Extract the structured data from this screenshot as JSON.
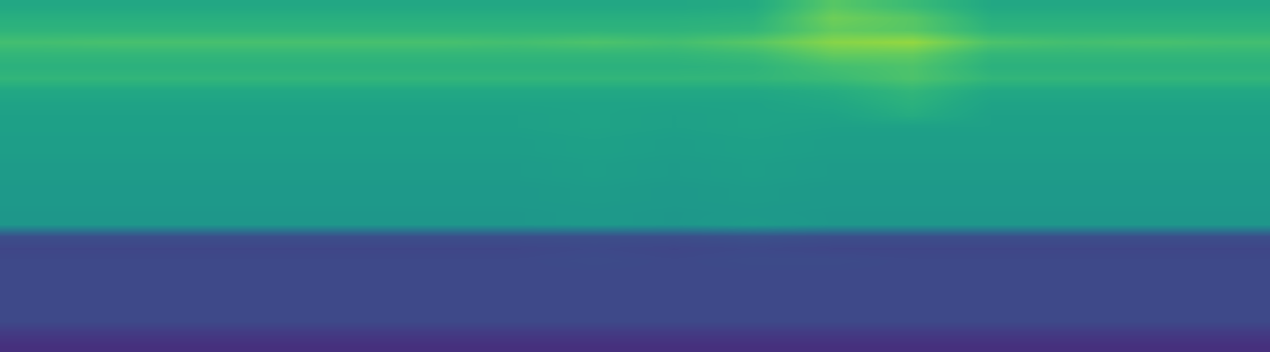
{
  "chart_data": {
    "type": "heatmap",
    "tick_labels": false,
    "color_range": [
      0,
      1
    ],
    "cells": [
      [
        0.6,
        0.6,
        0.6,
        0.6,
        0.6,
        0.6,
        0.6,
        0.6,
        0.6,
        0.61,
        0.74,
        0.68,
        0.6,
        0.6,
        0.6,
        0.6
      ],
      [
        0.63,
        0.63,
        0.63,
        0.63,
        0.63,
        0.63,
        0.63,
        0.63,
        0.63,
        0.64,
        0.78,
        0.74,
        0.63,
        0.63,
        0.63,
        0.63
      ],
      [
        0.65,
        0.65,
        0.65,
        0.65,
        0.65,
        0.65,
        0.65,
        0.65,
        0.65,
        0.66,
        0.76,
        0.74,
        0.65,
        0.65,
        0.65,
        0.65
      ],
      [
        0.7,
        0.71,
        0.71,
        0.71,
        0.71,
        0.71,
        0.7,
        0.72,
        0.7,
        0.74,
        0.82,
        0.84,
        0.72,
        0.7,
        0.71,
        0.7
      ],
      [
        0.66,
        0.66,
        0.66,
        0.66,
        0.66,
        0.66,
        0.66,
        0.66,
        0.66,
        0.68,
        0.76,
        0.76,
        0.66,
        0.66,
        0.66,
        0.66
      ],
      [
        0.64,
        0.64,
        0.64,
        0.64,
        0.64,
        0.64,
        0.64,
        0.64,
        0.64,
        0.65,
        0.7,
        0.72,
        0.64,
        0.64,
        0.64,
        0.64
      ],
      [
        0.66,
        0.66,
        0.66,
        0.66,
        0.66,
        0.66,
        0.66,
        0.66,
        0.66,
        0.66,
        0.68,
        0.72,
        0.66,
        0.66,
        0.66,
        0.66
      ],
      [
        0.6,
        0.6,
        0.6,
        0.6,
        0.6,
        0.6,
        0.6,
        0.6,
        0.6,
        0.6,
        0.62,
        0.66,
        0.6,
        0.6,
        0.6,
        0.6
      ],
      [
        0.58,
        0.58,
        0.58,
        0.58,
        0.58,
        0.58,
        0.58,
        0.58,
        0.58,
        0.58,
        0.6,
        0.64,
        0.58,
        0.58,
        0.58,
        0.58
      ],
      [
        0.57,
        0.57,
        0.57,
        0.57,
        0.57,
        0.57,
        0.57,
        0.58,
        0.57,
        0.58,
        0.58,
        0.62,
        0.57,
        0.57,
        0.57,
        0.57
      ],
      [
        0.57,
        0.57,
        0.57,
        0.57,
        0.57,
        0.57,
        0.57,
        0.58,
        0.57,
        0.58,
        0.57,
        0.57,
        0.57,
        0.57,
        0.57,
        0.57
      ],
      [
        0.56,
        0.56,
        0.56,
        0.56,
        0.56,
        0.56,
        0.56,
        0.57,
        0.56,
        0.57,
        0.56,
        0.56,
        0.56,
        0.56,
        0.56,
        0.56
      ],
      [
        0.56,
        0.56,
        0.56,
        0.56,
        0.56,
        0.56,
        0.56,
        0.57,
        0.56,
        0.57,
        0.56,
        0.56,
        0.56,
        0.56,
        0.56,
        0.56
      ],
      [
        0.55,
        0.55,
        0.55,
        0.55,
        0.55,
        0.55,
        0.55,
        0.56,
        0.55,
        0.56,
        0.55,
        0.55,
        0.55,
        0.55,
        0.55,
        0.55
      ],
      [
        0.55,
        0.55,
        0.55,
        0.55,
        0.55,
        0.55,
        0.55,
        0.56,
        0.55,
        0.56,
        0.55,
        0.55,
        0.55,
        0.55,
        0.55,
        0.55
      ],
      [
        0.54,
        0.54,
        0.54,
        0.54,
        0.54,
        0.54,
        0.54,
        0.55,
        0.54,
        0.55,
        0.54,
        0.54,
        0.54,
        0.54,
        0.54,
        0.54
      ],
      [
        0.54,
        0.54,
        0.54,
        0.54,
        0.54,
        0.54,
        0.54,
        0.55,
        0.54,
        0.55,
        0.54,
        0.54,
        0.54,
        0.54,
        0.54,
        0.54
      ],
      [
        0.53,
        0.53,
        0.53,
        0.53,
        0.53,
        0.53,
        0.53,
        0.54,
        0.53,
        0.54,
        0.53,
        0.53,
        0.53,
        0.53,
        0.53,
        0.53
      ],
      [
        0.53,
        0.53,
        0.53,
        0.53,
        0.53,
        0.53,
        0.53,
        0.54,
        0.53,
        0.55,
        0.53,
        0.53,
        0.53,
        0.53,
        0.53,
        0.53
      ],
      [
        0.24,
        0.24,
        0.24,
        0.24,
        0.24,
        0.24,
        0.24,
        0.24,
        0.24,
        0.25,
        0.24,
        0.24,
        0.24,
        0.24,
        0.24,
        0.24
      ],
      [
        0.21,
        0.21,
        0.21,
        0.21,
        0.21,
        0.21,
        0.21,
        0.22,
        0.21,
        0.22,
        0.21,
        0.21,
        0.21,
        0.21,
        0.21,
        0.21
      ],
      [
        0.22,
        0.22,
        0.22,
        0.22,
        0.22,
        0.22,
        0.22,
        0.23,
        0.22,
        0.23,
        0.23,
        0.22,
        0.22,
        0.22,
        0.22,
        0.22
      ],
      [
        0.22,
        0.22,
        0.22,
        0.22,
        0.22,
        0.22,
        0.22,
        0.22,
        0.22,
        0.22,
        0.22,
        0.22,
        0.22,
        0.22,
        0.22,
        0.22
      ],
      [
        0.22,
        0.22,
        0.22,
        0.22,
        0.22,
        0.22,
        0.22,
        0.22,
        0.22,
        0.22,
        0.22,
        0.22,
        0.22,
        0.22,
        0.22,
        0.22
      ],
      [
        0.22,
        0.22,
        0.22,
        0.22,
        0.22,
        0.22,
        0.22,
        0.22,
        0.22,
        0.22,
        0.22,
        0.22,
        0.22,
        0.22,
        0.22,
        0.22
      ],
      [
        0.22,
        0.22,
        0.22,
        0.22,
        0.22,
        0.22,
        0.22,
        0.22,
        0.22,
        0.22,
        0.22,
        0.22,
        0.22,
        0.22,
        0.22,
        0.22
      ],
      [
        0.22,
        0.22,
        0.22,
        0.22,
        0.22,
        0.22,
        0.22,
        0.22,
        0.22,
        0.22,
        0.22,
        0.22,
        0.22,
        0.22,
        0.22,
        0.22
      ],
      [
        0.17,
        0.17,
        0.17,
        0.17,
        0.17,
        0.17,
        0.17,
        0.17,
        0.17,
        0.17,
        0.17,
        0.17,
        0.17,
        0.17,
        0.17,
        0.17
      ],
      [
        0.14,
        0.14,
        0.14,
        0.14,
        0.14,
        0.14,
        0.14,
        0.14,
        0.14,
        0.14,
        0.14,
        0.14,
        0.14,
        0.14,
        0.14,
        0.14
      ]
    ]
  }
}
